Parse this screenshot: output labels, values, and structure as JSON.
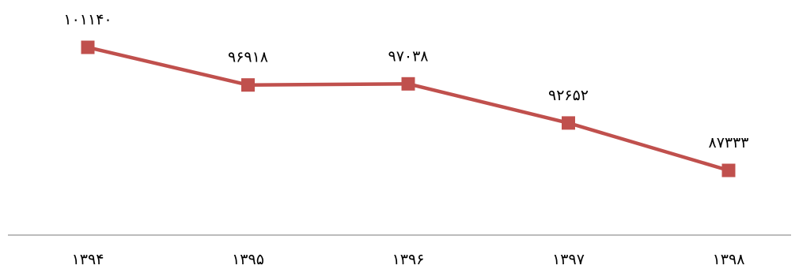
{
  "chart_data": {
    "type": "line",
    "title": "",
    "xlabel": "",
    "ylabel": "",
    "categories": [
      "۱۳۹۴",
      "۱۳۹۵",
      "۱۳۹۶",
      "۱۳۹۷",
      "۱۳۹۸"
    ],
    "series": [
      {
        "values": [
          101140,
          96918,
          97038,
          92652,
          87333
        ],
        "labels": [
          "۱۰۱۱۴۰",
          "۹۶۹۱۸",
          "۹۷۰۳۸",
          "۹۲۶۵۲",
          "۸۷۳۳۳"
        ],
        "color": "#c0504d",
        "marker": "square"
      }
    ],
    "axis_color": "#a6a6a6",
    "grid": false,
    "legend": "none"
  }
}
